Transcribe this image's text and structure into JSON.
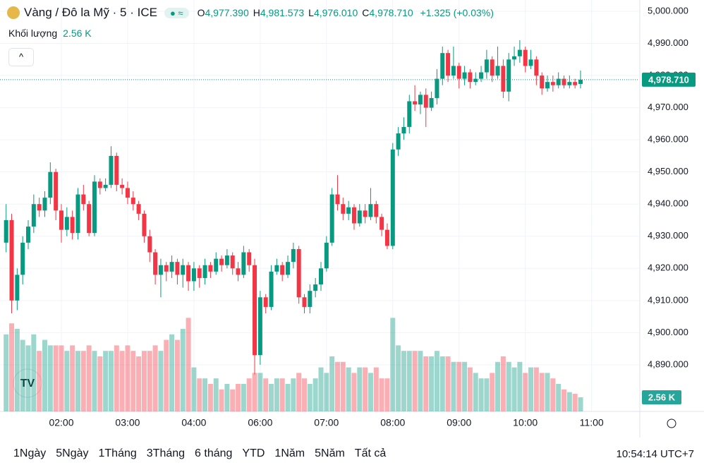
{
  "header": {
    "symbol": "Vàng / Đô la Mỹ · 5 · ICE",
    "o_key": "O",
    "o": "4,977.390",
    "h_key": "H",
    "h": "4,981.573",
    "l_key": "L",
    "l": "4,976.010",
    "c_key": "C",
    "c": "4,978.710",
    "change": "+1.325 (+0.03%)",
    "volume_key": "Khối lượng"
  },
  "ranges": [
    "1Ngày",
    "5Ngày",
    "1Tháng",
    "3Tháng",
    "6 tháng",
    "YTD",
    "1Năm",
    "5Năm",
    "Tất cả"
  ],
  "clock": "10:54:14 UTC+7",
  "chart_data": {
    "type": "candlestick",
    "up_color": "#089981",
    "down_color": "#f23645",
    "grid": true,
    "last_price": 4978.71,
    "last_price_label": "4,978.710",
    "volume_last_label": "2.56 K",
    "xlim": [
      -1.11,
      114.6
    ],
    "xticks": [
      {
        "value": 10,
        "label": "02:00"
      },
      {
        "value": 22,
        "label": "03:00"
      },
      {
        "value": 34,
        "label": "04:00"
      },
      {
        "value": 46,
        "label": "06:00"
      },
      {
        "value": 58,
        "label": "07:00"
      },
      {
        "value": 70,
        "label": "08:00"
      },
      {
        "value": 82,
        "label": "09:00"
      },
      {
        "value": 94,
        "label": "10:00"
      },
      {
        "value": 106,
        "label": "11:00"
      }
    ],
    "ylim": [
      4877.46,
      5003.51
    ],
    "yticks": [
      {
        "value": 5000,
        "label": "5,000.000"
      },
      {
        "value": 4990,
        "label": "4,990.000"
      },
      {
        "value": 4980,
        "label": "4,980.000"
      },
      {
        "value": 4970,
        "label": "4,970.000"
      },
      {
        "value": 4960,
        "label": "4,960.000"
      },
      {
        "value": 4950,
        "label": "4,950.000"
      },
      {
        "value": 4940,
        "label": "4,940.000"
      },
      {
        "value": 4930,
        "label": "4,930.000"
      },
      {
        "value": 4920,
        "label": "4,920.000"
      },
      {
        "value": 4910,
        "label": "4,910.000"
      },
      {
        "value": 4900,
        "label": "4,900.000"
      },
      {
        "value": 4890,
        "label": "4,890.000"
      }
    ],
    "volume_ylim": [
      0,
      20
    ],
    "open": [
      4928,
      4935,
      4910,
      4918,
      4928,
      4933,
      4940,
      4938,
      4942,
      4950,
      4938,
      4932,
      4936,
      4931,
      4943,
      4940,
      4931,
      4947,
      4945,
      4946,
      4955,
      4946,
      4945,
      4942,
      4940,
      4937,
      4930,
      4925,
      4918,
      4921,
      4919,
      4922,
      4918,
      4921,
      4916,
      4920,
      4917,
      4921,
      4919,
      4923,
      4921,
      4924,
      4920,
      4918,
      4925,
      4921,
      4893,
      4911,
      4908,
      4919,
      4921,
      4918,
      4922,
      4926,
      4911,
      4908,
      4913,
      4915,
      4920,
      4928,
      4943,
      4940,
      4937,
      4939,
      4934,
      4938,
      4936,
      4940,
      4936,
      4932,
      4927,
      4957,
      4962,
      4964,
      4972,
      4971,
      4974,
      4970,
      4973,
      4979,
      4987,
      4980,
      4983,
      4979,
      4981,
      4978,
      4979,
      4981,
      4985,
      4980,
      4983,
      4975,
      4985,
      4986,
      4988,
      4983,
      4985,
      4980,
      4976,
      4978,
      4977,
      4979,
      4977,
      4978,
      4977.39
    ],
    "high": [
      4940,
      4937,
      4920,
      4930,
      4935,
      4943,
      4942,
      4944,
      4953,
      4951,
      4940,
      4939,
      4938,
      4945,
      4946,
      4941,
      4949,
      4948,
      4948,
      4958,
      4956,
      4948,
      4947,
      4944,
      4941,
      4938,
      4932,
      4926,
      4923,
      4922,
      4924,
      4923,
      4923,
      4922,
      4922,
      4921,
      4923,
      4922,
      4925,
      4924,
      4926,
      4925,
      4922,
      4927,
      4926,
      4923,
      4913,
      4912,
      4921,
      4923,
      4922,
      4924,
      4928,
      4927,
      4912,
      4915,
      4917,
      4922,
      4930,
      4945,
      4949,
      4942,
      4941,
      4940,
      4940,
      4940,
      4945,
      4941,
      4937,
      4934,
      4959,
      4964,
      4967,
      4974,
      4977,
      4975,
      4976,
      4975,
      4982,
      4989,
      4988,
      4989,
      4984,
      4983,
      4982,
      4981,
      4983,
      4988,
      4986,
      4989,
      4985,
      4987,
      4989,
      4991,
      4989,
      4988,
      4986,
      4981,
      4980,
      4980,
      4981,
      4980,
      4980,
      4979,
      4981.573
    ],
    "low": [
      4925,
      4906,
      4907,
      4915,
      4926,
      4931,
      4936,
      4936,
      4940,
      4935,
      4928,
      4930,
      4929,
      4929,
      4938,
      4930,
      4930,
      4943,
      4944,
      4945,
      4944,
      4943,
      4940,
      4938,
      4935,
      4928,
      4922,
      4915,
      4911,
      4916,
      4917,
      4915,
      4914,
      4913,
      4913,
      4914,
      4915,
      4917,
      4918,
      4919,
      4920,
      4918,
      4916,
      4917,
      4919,
      4887,
      4890,
      4906,
      4907,
      4918,
      4916,
      4917,
      4920,
      4909,
      4906,
      4906,
      4911,
      4913,
      4919,
      4927,
      4938,
      4935,
      4935,
      4932,
      4933,
      4934,
      4935,
      4934,
      4930,
      4926,
      4926,
      4955,
      4960,
      4962,
      4969,
      4968,
      4964,
      4969,
      4971,
      4977,
      4978,
      4979,
      4976,
      4977,
      4976,
      4977,
      4978,
      4979,
      4978,
      4979,
      4973,
      4972,
      4983,
      4984,
      4981,
      4982,
      4977,
      4974,
      4975,
      4975,
      4976,
      4976,
      4976,
      4976,
      4976.01
    ],
    "close": [
      4935,
      4910,
      4918,
      4928,
      4933,
      4940,
      4938,
      4942,
      4950,
      4938,
      4932,
      4936,
      4931,
      4943,
      4940,
      4931,
      4947,
      4945,
      4946,
      4955,
      4946,
      4945,
      4942,
      4940,
      4937,
      4930,
      4925,
      4918,
      4921,
      4919,
      4922,
      4918,
      4921,
      4916,
      4920,
      4917,
      4921,
      4919,
      4923,
      4921,
      4924,
      4920,
      4918,
      4925,
      4921,
      4893,
      4911,
      4908,
      4919,
      4921,
      4918,
      4922,
      4926,
      4911,
      4908,
      4913,
      4915,
      4920,
      4928,
      4943,
      4940,
      4937,
      4939,
      4934,
      4938,
      4936,
      4940,
      4936,
      4932,
      4927,
      4957,
      4962,
      4964,
      4972,
      4971,
      4974,
      4970,
      4973,
      4979,
      4987,
      4980,
      4983,
      4979,
      4981,
      4978,
      4979,
      4981,
      4985,
      4980,
      4983,
      4975,
      4985,
      4986,
      4988,
      4983,
      4985,
      4980,
      4976,
      4978,
      4977,
      4979,
      4977,
      4978,
      4977,
      4978.71
    ],
    "volume": [
      14,
      16,
      15,
      13,
      12,
      14,
      11,
      13,
      12,
      12,
      12,
      11,
      12,
      11,
      11,
      12,
      11,
      10,
      11,
      11,
      12,
      11,
      12,
      11,
      10,
      11,
      11,
      12,
      11,
      13,
      14,
      13,
      15,
      17,
      8,
      6,
      6,
      5,
      6,
      4,
      5,
      4,
      5,
      5,
      6,
      7,
      7,
      6,
      5,
      6,
      6,
      5,
      6,
      7,
      6,
      5,
      6,
      8,
      7,
      10,
      9,
      9,
      8,
      7,
      8,
      8,
      7,
      8,
      6,
      6,
      17,
      12,
      11,
      11,
      11,
      11,
      10,
      10,
      11,
      10,
      10,
      9,
      9,
      9,
      8,
      7,
      6,
      6,
      7,
      9,
      10,
      9,
      8,
      9,
      7,
      8,
      8,
      7,
      7,
      6,
      5,
      4,
      3.5,
      3.2,
      2.56
    ]
  }
}
